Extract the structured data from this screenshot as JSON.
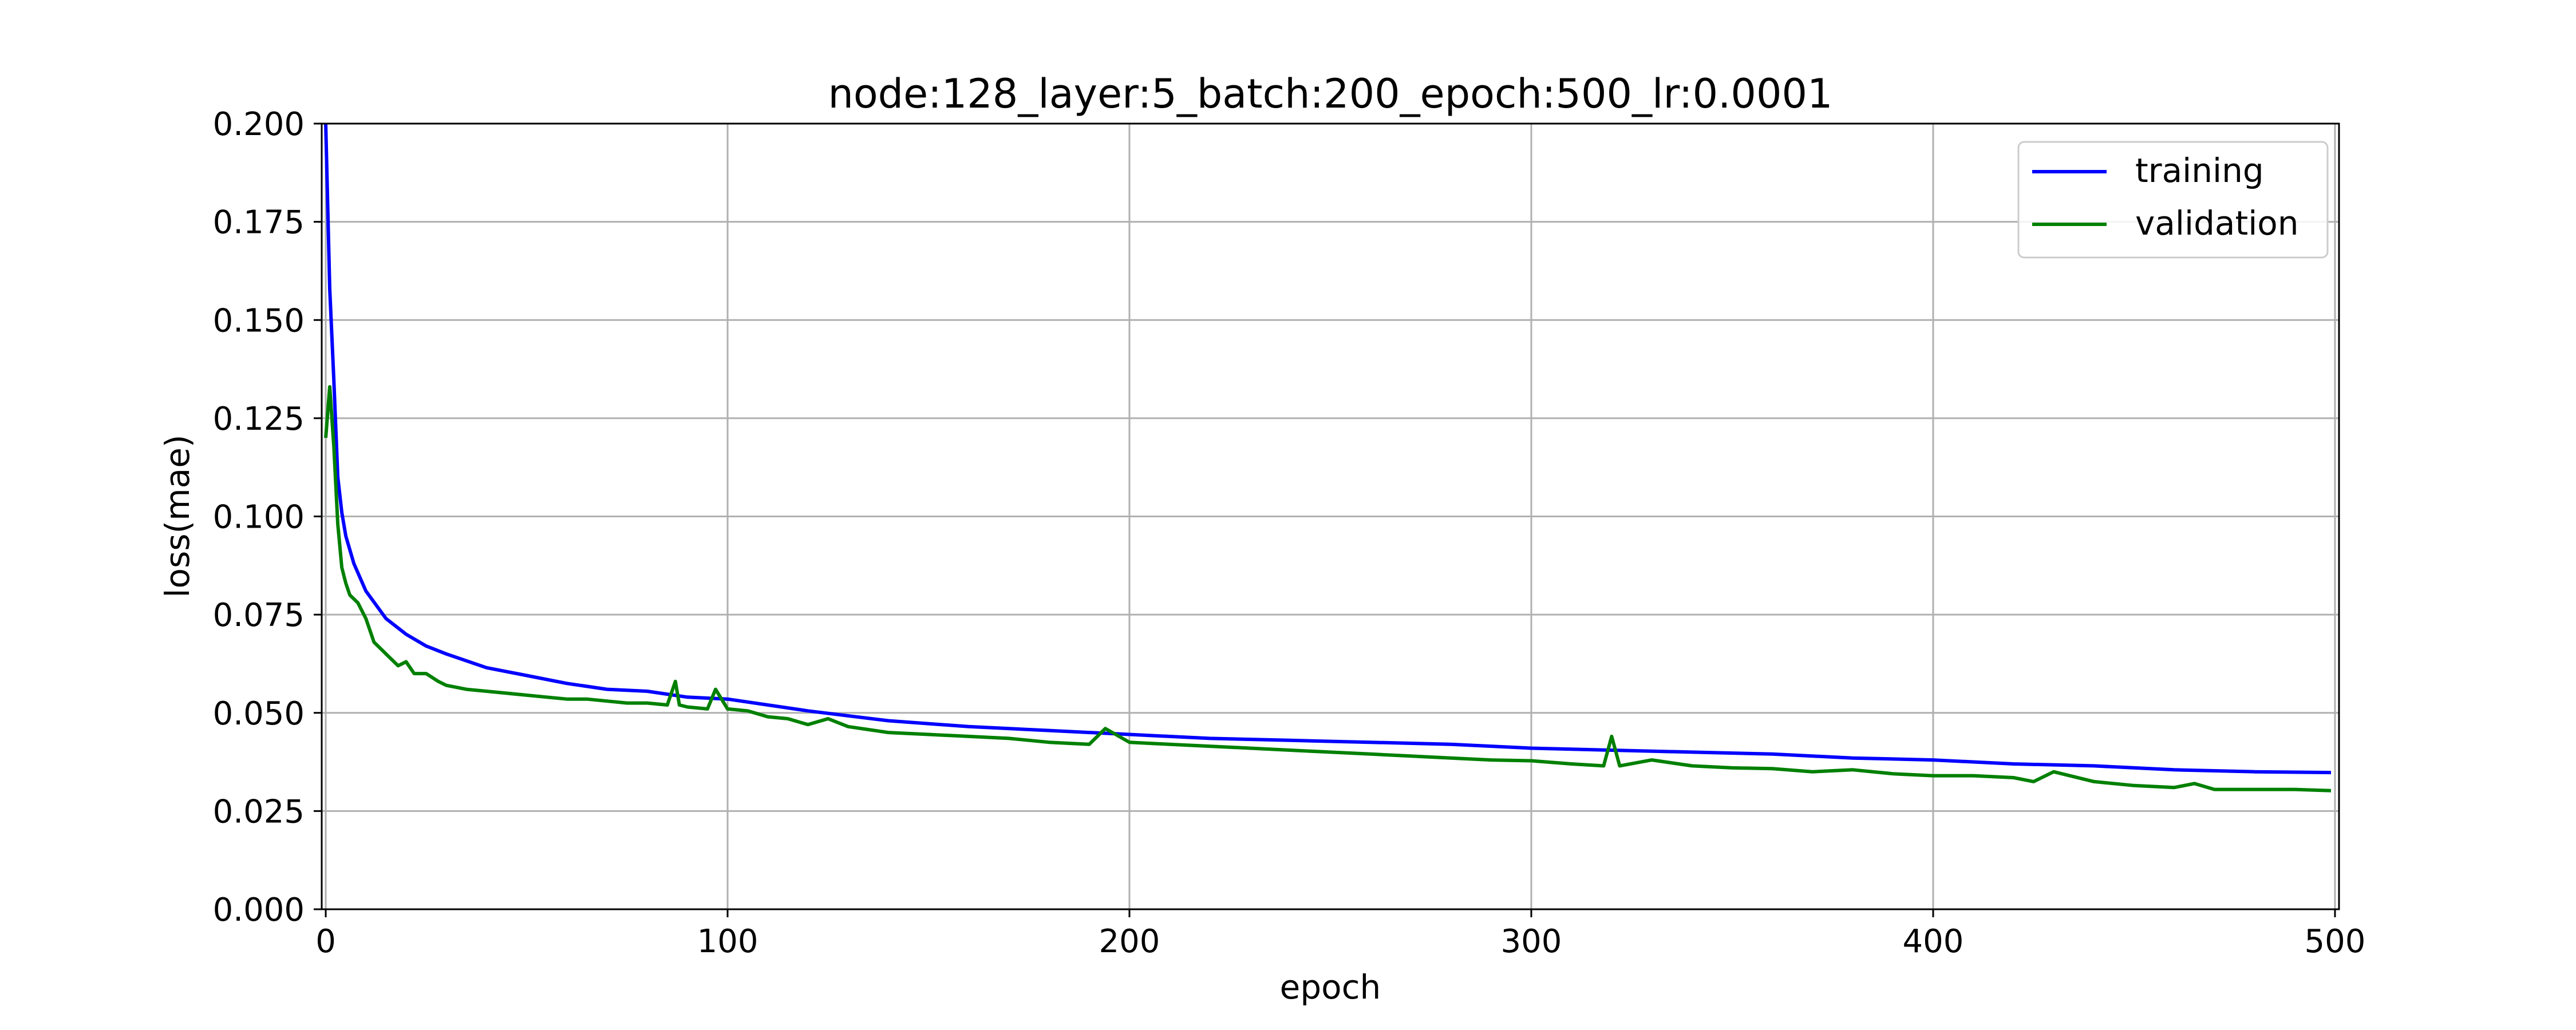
{
  "chart_data": {
    "type": "line",
    "title": "node:128_layer:5_batch:200_epoch:500_lr:0.0001",
    "xlabel": "epoch",
    "ylabel": "loss(mae)",
    "xlim": [
      -1,
      501
    ],
    "ylim": [
      0,
      0.2
    ],
    "x_ticks": [
      0,
      100,
      200,
      300,
      400,
      500
    ],
    "y_ticks": [
      0.0,
      0.025,
      0.05,
      0.075,
      0.1,
      0.125,
      0.15,
      0.175,
      0.2
    ],
    "x_tick_labels": [
      "0",
      "100",
      "200",
      "300",
      "400",
      "500"
    ],
    "y_tick_labels": [
      "0.000",
      "0.025",
      "0.050",
      "0.075",
      "0.100",
      "0.125",
      "0.150",
      "0.175",
      "0.200"
    ],
    "grid": true,
    "legend_position": "top-right",
    "series": [
      {
        "name": "training",
        "color": "#0000ff",
        "x": [
          0,
          1,
          2,
          3,
          4,
          5,
          7,
          10,
          15,
          20,
          25,
          30,
          40,
          50,
          60,
          70,
          80,
          90,
          100,
          120,
          140,
          160,
          180,
          200,
          220,
          240,
          260,
          280,
          300,
          320,
          340,
          360,
          380,
          400,
          420,
          440,
          460,
          480,
          499
        ],
        "y": [
          0.2,
          0.158,
          0.135,
          0.11,
          0.101,
          0.095,
          0.088,
          0.081,
          0.074,
          0.07,
          0.067,
          0.065,
          0.0615,
          0.0595,
          0.0575,
          0.056,
          0.0555,
          0.054,
          0.0535,
          0.0505,
          0.048,
          0.0465,
          0.0455,
          0.0445,
          0.0435,
          0.043,
          0.0425,
          0.042,
          0.041,
          0.0405,
          0.04,
          0.0395,
          0.0385,
          0.038,
          0.037,
          0.0365,
          0.0355,
          0.035,
          0.0348
        ]
      },
      {
        "name": "validation",
        "color": "#008000",
        "x": [
          0,
          1,
          2,
          3,
          4,
          5,
          6,
          8,
          10,
          12,
          15,
          18,
          20,
          22,
          25,
          28,
          30,
          35,
          40,
          45,
          50,
          55,
          60,
          65,
          70,
          75,
          80,
          85,
          87,
          88,
          90,
          95,
          97,
          100,
          105,
          110,
          115,
          120,
          125,
          130,
          140,
          150,
          160,
          170,
          180,
          190,
          194,
          200,
          210,
          220,
          230,
          240,
          250,
          260,
          270,
          280,
          290,
          300,
          310,
          318,
          320,
          322,
          330,
          340,
          350,
          360,
          370,
          380,
          390,
          400,
          410,
          420,
          425,
          430,
          440,
          450,
          460,
          465,
          470,
          480,
          490,
          499
        ],
        "y": [
          0.12,
          0.133,
          0.118,
          0.098,
          0.087,
          0.083,
          0.08,
          0.078,
          0.074,
          0.068,
          0.065,
          0.062,
          0.063,
          0.06,
          0.06,
          0.058,
          0.057,
          0.056,
          0.0555,
          0.055,
          0.0545,
          0.054,
          0.0535,
          0.0535,
          0.053,
          0.0525,
          0.0525,
          0.052,
          0.058,
          0.052,
          0.0515,
          0.051,
          0.056,
          0.051,
          0.0505,
          0.049,
          0.0485,
          0.047,
          0.0485,
          0.0465,
          0.045,
          0.0445,
          0.044,
          0.0435,
          0.0425,
          0.042,
          0.046,
          0.0425,
          0.042,
          0.0415,
          0.041,
          0.0405,
          0.04,
          0.0395,
          0.039,
          0.0385,
          0.038,
          0.0378,
          0.037,
          0.0365,
          0.044,
          0.0365,
          0.038,
          0.0365,
          0.036,
          0.0358,
          0.035,
          0.0355,
          0.0345,
          0.034,
          0.034,
          0.0335,
          0.0325,
          0.035,
          0.0325,
          0.0315,
          0.031,
          0.032,
          0.0305,
          0.0305,
          0.0305,
          0.0302
        ]
      }
    ]
  }
}
